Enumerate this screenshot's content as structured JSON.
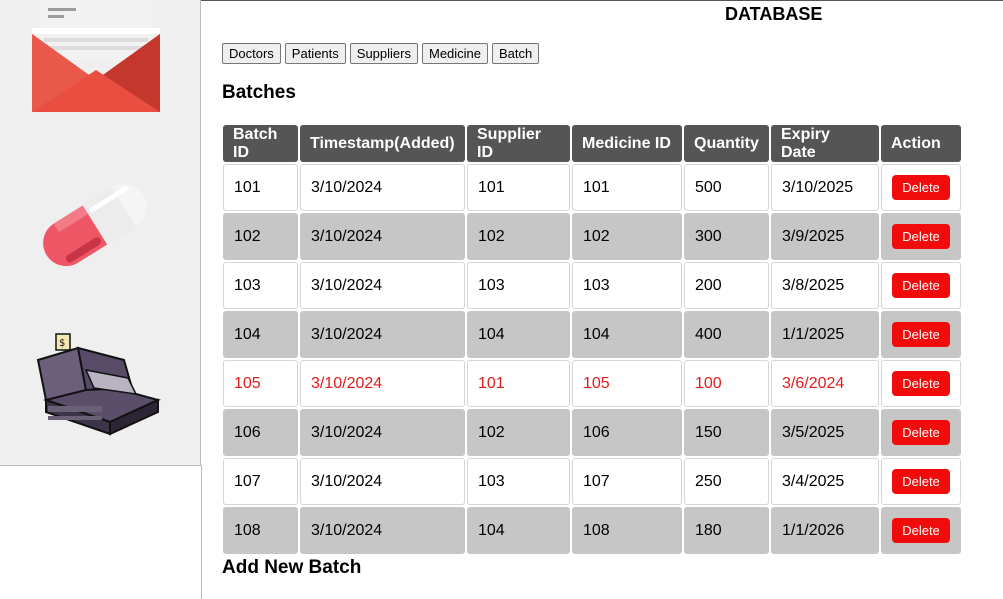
{
  "header": {
    "title": "DATABASE"
  },
  "nav": {
    "buttons": [
      {
        "label": "Doctors"
      },
      {
        "label": "Patients"
      },
      {
        "label": "Suppliers"
      },
      {
        "label": "Medicine"
      },
      {
        "label": "Batch"
      }
    ]
  },
  "sidebar": {
    "icons": [
      "mail-icon",
      "pill-icon",
      "cash-register-icon"
    ]
  },
  "batches": {
    "heading": "Batches",
    "columns": [
      "Batch ID",
      "Timestamp(Added)",
      "Supplier ID",
      "Medicine ID",
      "Quantity",
      "Expiry Date",
      "Action"
    ],
    "delete_label": "Delete",
    "highlight_color": "#e11b1b",
    "rows": [
      {
        "batch_id": "101",
        "timestamp": "3/10/2024",
        "supplier_id": "101",
        "medicine_id": "101",
        "quantity": "500",
        "expiry": "3/10/2025"
      },
      {
        "batch_id": "102",
        "timestamp": "3/10/2024",
        "supplier_id": "102",
        "medicine_id": "102",
        "quantity": "300",
        "expiry": "3/9/2025"
      },
      {
        "batch_id": "103",
        "timestamp": "3/10/2024",
        "supplier_id": "103",
        "medicine_id": "103",
        "quantity": "200",
        "expiry": "3/8/2025"
      },
      {
        "batch_id": "104",
        "timestamp": "3/10/2024",
        "supplier_id": "104",
        "medicine_id": "104",
        "quantity": "400",
        "expiry": "1/1/2025"
      },
      {
        "batch_id": "105",
        "timestamp": "3/10/2024",
        "supplier_id": "101",
        "medicine_id": "105",
        "quantity": "100",
        "expiry": "3/6/2024"
      },
      {
        "batch_id": "106",
        "timestamp": "3/10/2024",
        "supplier_id": "102",
        "medicine_id": "106",
        "quantity": "150",
        "expiry": "3/5/2025"
      },
      {
        "batch_id": "107",
        "timestamp": "3/10/2024",
        "supplier_id": "103",
        "medicine_id": "107",
        "quantity": "250",
        "expiry": "3/4/2025"
      },
      {
        "batch_id": "108",
        "timestamp": "3/10/2024",
        "supplier_id": "104",
        "medicine_id": "108",
        "quantity": "180",
        "expiry": "1/1/2026"
      }
    ]
  },
  "add_section": {
    "heading": "Add New Batch"
  }
}
